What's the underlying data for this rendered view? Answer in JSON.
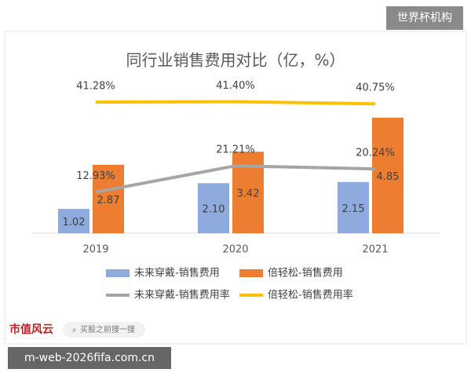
{
  "chart_data": {
    "type": "bar",
    "title": "同行业销售费用对比（亿，%）",
    "categories": [
      "2019",
      "2020",
      "2021"
    ],
    "ylim": [
      0,
      6
    ],
    "y2lim": [
      0,
      45
    ],
    "series": [
      {
        "name": "未来穿戴-销售费用",
        "type": "bar",
        "color": "#8faadc",
        "values": [
          1.02,
          2.1,
          2.15
        ],
        "value_labels": [
          "1.02",
          "2.10",
          "2.15"
        ]
      },
      {
        "name": "倍轻松-销售费用",
        "type": "bar",
        "color": "#ed7d31",
        "values": [
          2.87,
          3.42,
          4.85
        ],
        "value_labels": [
          "2.87",
          "3.42",
          "4.85"
        ]
      },
      {
        "name": "未来穿戴-销售费用率",
        "type": "line",
        "axis": "y2",
        "color": "#a5a5a5",
        "values": [
          12.93,
          21.21,
          20.24
        ],
        "value_labels": [
          "12.93%",
          "21.21%",
          "20.24%"
        ]
      },
      {
        "name": "倍轻松-销售费用率",
        "type": "line",
        "axis": "y2",
        "color": "#ffc000",
        "values": [
          41.28,
          41.4,
          40.75
        ],
        "value_labels": [
          "41.28%",
          "41.40%",
          "40.75%"
        ]
      }
    ]
  },
  "page": {
    "badge": "世界杯机构",
    "logo": "市值风云",
    "search": "买股之前搜一搜",
    "url": "m-web-2026fifa.com.cn"
  }
}
